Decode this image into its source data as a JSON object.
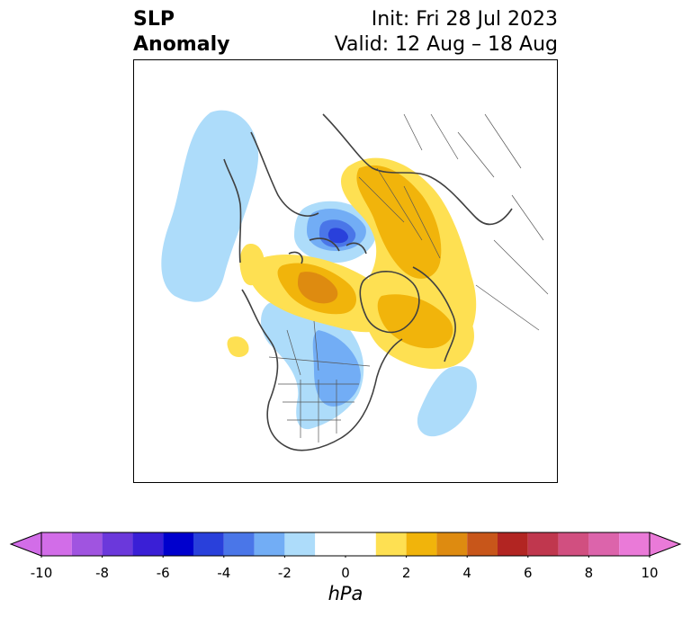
{
  "title": {
    "left_line1": "SLP",
    "left_line2": "Anomaly",
    "right_line1": "Init: Fri 28 Jul 2023",
    "right_line2": "Valid: 12 Aug – 18 Aug"
  },
  "colorbar": {
    "unit": "hPa",
    "range": [
      -10,
      10
    ],
    "extend": "both",
    "ticks": [
      "-10",
      "-8",
      "-6",
      "-4",
      "-2",
      "0",
      "2",
      "4",
      "6",
      "8",
      "10"
    ],
    "bins": [
      {
        "from": -10,
        "to": -9,
        "color": "#d26de8"
      },
      {
        "from": -9,
        "to": -8,
        "color": "#a054e0"
      },
      {
        "from": -8,
        "to": -7,
        "color": "#6b38db"
      },
      {
        "from": -7,
        "to": -6,
        "color": "#3a1fd6"
      },
      {
        "from": -6,
        "to": -5,
        "color": "#0000cd"
      },
      {
        "from": -5,
        "to": -4,
        "color": "#2940db"
      },
      {
        "from": -4,
        "to": -3,
        "color": "#4a76e8"
      },
      {
        "from": -3,
        "to": -2,
        "color": "#72adf5"
      },
      {
        "from": -2,
        "to": -1,
        "color": "#addcfa"
      },
      {
        "from": -1,
        "to": 1,
        "color": "#ffffff"
      },
      {
        "from": 1,
        "to": 2,
        "color": "#fee052"
      },
      {
        "from": 2,
        "to": 3,
        "color": "#f1b40b"
      },
      {
        "from": 3,
        "to": 4,
        "color": "#de8b10"
      },
      {
        "from": 4,
        "to": 5,
        "color": "#c8561a"
      },
      {
        "from": 5,
        "to": 6,
        "color": "#b22522"
      },
      {
        "from": 6,
        "to": 7,
        "color": "#c0374e"
      },
      {
        "from": 7,
        "to": 8,
        "color": "#d14f80"
      },
      {
        "from": 8,
        "to": 9,
        "color": "#dc64ab"
      },
      {
        "from": 9,
        "to": 10,
        "color": "#ea7ad8"
      }
    ],
    "under_color": "#d26de8",
    "over_color": "#ea7ad8"
  },
  "map": {
    "projection": "north-polar stereographic",
    "variable": "sea level pressure anomaly",
    "colors": {
      "neg1": "#addcfa",
      "neg2": "#72adf5",
      "neg3": "#4a76e8",
      "neg4": "#2940db",
      "pos1": "#fee052",
      "pos2": "#f1b40b",
      "pos3": "#de8b10",
      "coast": "#404040",
      "borders": "#555555"
    }
  }
}
